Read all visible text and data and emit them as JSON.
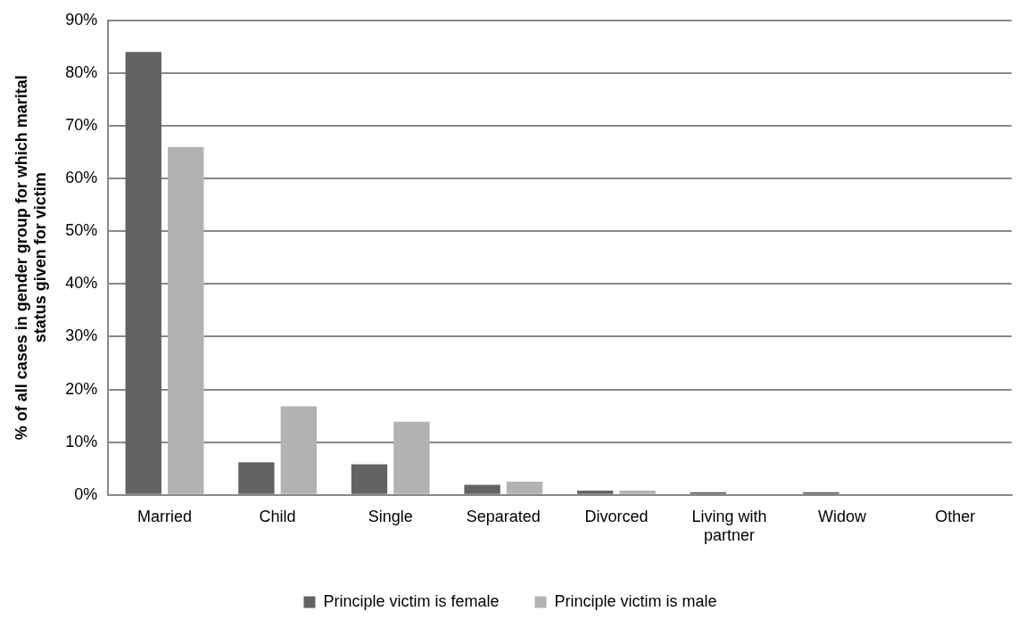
{
  "chart_data": {
    "type": "bar",
    "ylabel": "% of all cases in gender group for which marital status given for victim",
    "categories": [
      "Married",
      "Child",
      "Single",
      "Separated",
      "Divorced",
      "Living with partner",
      "Widow",
      "Other"
    ],
    "series": [
      {
        "name": "Principle victim is female",
        "color": "#636363",
        "values": [
          84,
          6.2,
          5.8,
          1.9,
          0.8,
          0.5,
          0.5,
          0
        ]
      },
      {
        "name": "Principle victim is male",
        "color": "#b2b2b2",
        "values": [
          66,
          16.8,
          13.9,
          2.5,
          0.8,
          0,
          0,
          0
        ]
      }
    ],
    "ylim": [
      0,
      90
    ],
    "yticks": [
      {
        "value": 0,
        "label": "0%"
      },
      {
        "value": 10,
        "label": "10%"
      },
      {
        "value": 20,
        "label": "20%"
      },
      {
        "value": 30,
        "label": "30%"
      },
      {
        "value": 40,
        "label": "40%"
      },
      {
        "value": 50,
        "label": "50%"
      },
      {
        "value": 60,
        "label": "60%"
      },
      {
        "value": 70,
        "label": "70%"
      },
      {
        "value": 80,
        "label": "80%"
      },
      {
        "value": 90,
        "label": "90%"
      }
    ],
    "grid": "y",
    "legend": "bottom"
  }
}
